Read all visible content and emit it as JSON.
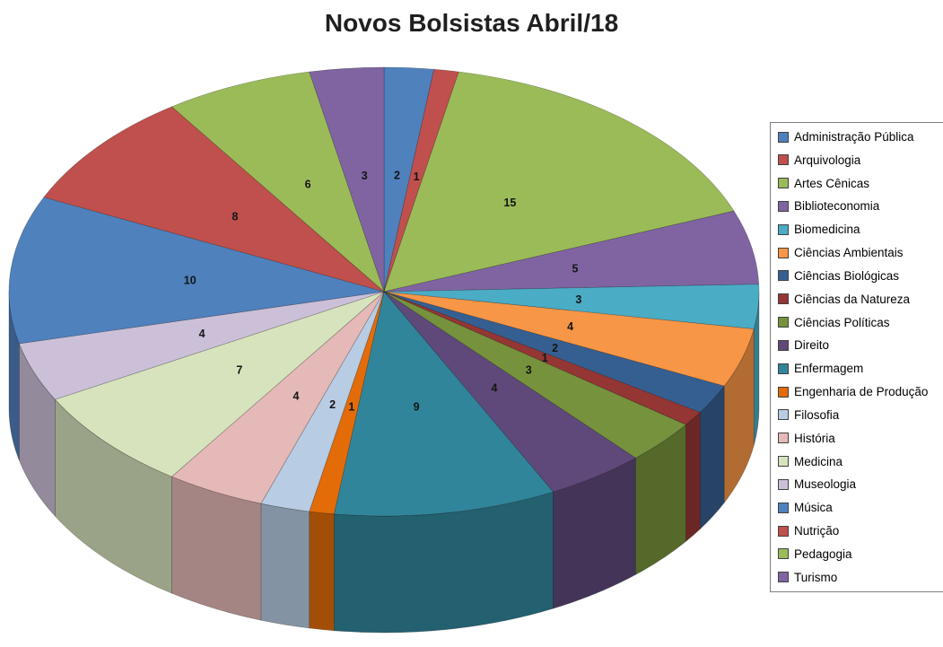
{
  "chart_data": {
    "type": "pie",
    "is_3d": true,
    "title": "Novos Bolsistas Abril/18",
    "legend_position": "right",
    "data_labels": "value",
    "start_angle_deg": 0,
    "direction": "clockwise",
    "categories": [
      "Administração Pública",
      "Arquivologia",
      "Artes Cênicas",
      "Biblioteconomia",
      "Biomedicina",
      "Ciências Ambientais",
      "Ciências Biológicas",
      "Ciências da Natureza",
      "Ciências Políticas",
      "Direito",
      "Enfermagem",
      "Engenharia de Produção",
      "Filosofia",
      "História",
      "Medicina",
      "Museologia",
      "Música",
      "Nutrição",
      "Pedagogia",
      "Turismo"
    ],
    "values": [
      2,
      1,
      15,
      5,
      3,
      4,
      2,
      1,
      3,
      4,
      9,
      1,
      2,
      4,
      7,
      4,
      10,
      8,
      6,
      3
    ],
    "colors": [
      "#4F81BD",
      "#C0504D",
      "#9BBB59",
      "#8064A2",
      "#4BACC6",
      "#F79646",
      "#365F91",
      "#943634",
      "#76923C",
      "#5F497A",
      "#31859B",
      "#E36C09",
      "#B8CCE4",
      "#E5B9B7",
      "#D6E3BC",
      "#CCC0D9",
      "#4F81BD",
      "#C0504D",
      "#9BBB59",
      "#8064A2"
    ],
    "title_color": "#1F1F1F",
    "label_color": "#141414",
    "legend_border_color": "#7F7F7F"
  }
}
